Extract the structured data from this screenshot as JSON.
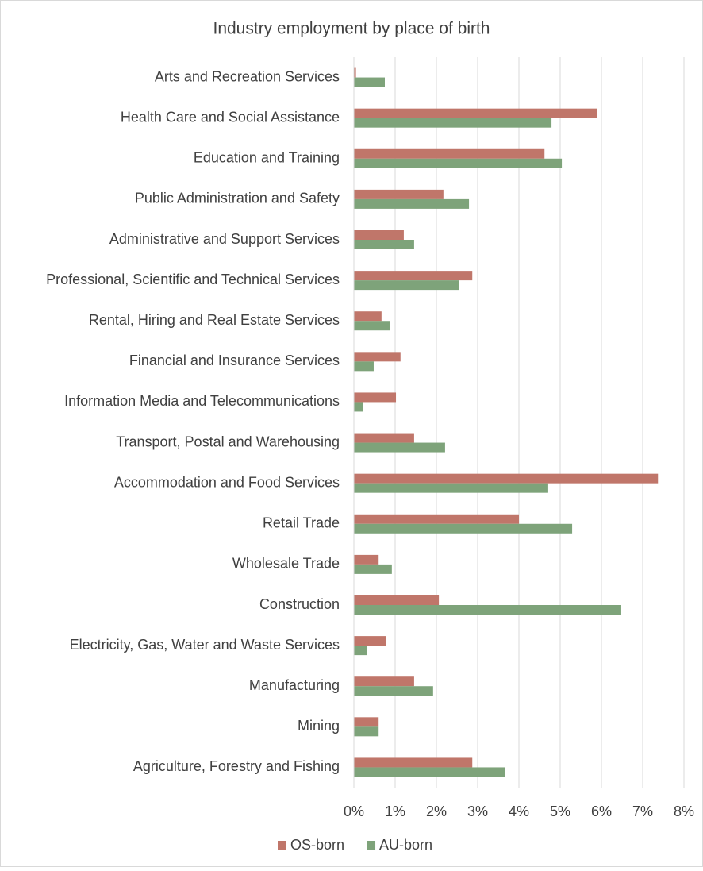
{
  "chart_data": {
    "type": "bar",
    "orientation": "horizontal",
    "title": "Industry employment by place of birth",
    "categories": [
      "Arts and Recreation Services",
      "Health Care and Social Assistance",
      "Education and Training",
      "Public Administration and Safety",
      "Administrative and Support Services",
      "Professional, Scientific and Technical Services",
      "Rental, Hiring and Real Estate Services",
      "Financial and Insurance Services",
      "Information Media and Telecommunications",
      "Transport, Postal and Warehousing",
      "Accommodation and Food Services",
      "Retail Trade",
      "Wholesale Trade",
      "Construction",
      "Electricity, Gas, Water and Waste Services",
      "Manufacturing",
      "Mining",
      "Agriculture, Forestry and Fishing"
    ],
    "series": [
      {
        "name": "OS-born",
        "color": "#c0766a",
        "values": [
          0.05,
          5.9,
          4.62,
          2.17,
          1.21,
          2.87,
          0.67,
          1.13,
          1.02,
          1.46,
          7.37,
          4.0,
          0.6,
          2.06,
          0.77,
          1.46,
          0.6,
          2.87
        ]
      },
      {
        "name": "AU-born",
        "color": "#7ea37a",
        "values": [
          0.75,
          4.79,
          5.04,
          2.79,
          1.46,
          2.54,
          0.88,
          0.48,
          0.23,
          2.21,
          4.71,
          5.29,
          0.92,
          6.48,
          0.31,
          1.92,
          0.6,
          3.67
        ]
      }
    ],
    "xlim": [
      0,
      8
    ],
    "xticks": [
      {
        "value": 0,
        "label": "0%"
      },
      {
        "value": 1,
        "label": "1%"
      },
      {
        "value": 2,
        "label": "2%"
      },
      {
        "value": 3,
        "label": "3%"
      },
      {
        "value": 4,
        "label": "4%"
      },
      {
        "value": 5,
        "label": "5%"
      },
      {
        "value": 6,
        "label": "6%"
      },
      {
        "value": 7,
        "label": "7%"
      },
      {
        "value": 8,
        "label": "8%"
      }
    ],
    "grid": true,
    "legend": "bottom"
  }
}
